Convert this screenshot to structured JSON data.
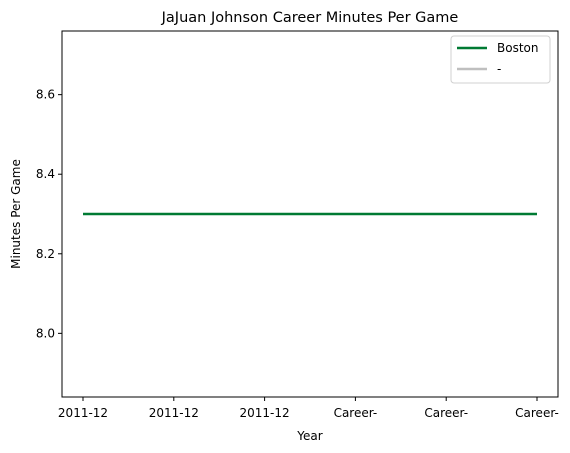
{
  "chart_data": {
    "type": "line",
    "title": "JaJuan Johnson Career Minutes Per Game",
    "xlabel": "Year",
    "ylabel": "Minutes Per Game",
    "categories": [
      "2011-12",
      "2011-12",
      "2011-12",
      "Career-",
      "Career-",
      "Career-"
    ],
    "series": [
      {
        "name": "Boston",
        "color": "#007A33",
        "values": [
          8.3,
          8.3,
          8.3,
          8.3,
          8.3,
          8.3
        ]
      },
      {
        "name": "-",
        "color": "#BFBFBF",
        "values": [
          null,
          null,
          null,
          null,
          null,
          null
        ]
      }
    ],
    "yticks": [
      8.0,
      8.2,
      8.4,
      8.6
    ],
    "ytick_labels": [
      "8.0",
      "8.2",
      "8.4",
      "8.6"
    ],
    "ylim": [
      7.84,
      8.76
    ],
    "grid": false,
    "legend_position": "top-right"
  }
}
